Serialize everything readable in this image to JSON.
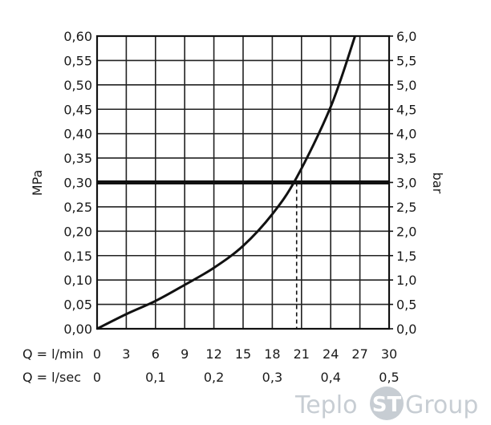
{
  "chart_data": {
    "type": "line",
    "ylabel_left": "MPa",
    "ylabel_right": "bar",
    "ylim": [
      0,
      0.6
    ],
    "y_ticks_left": [
      "0,00",
      "0,05",
      "0,10",
      "0,15",
      "0,20",
      "0,25",
      "0,30",
      "0,35",
      "0,40",
      "0,45",
      "0,50",
      "0,55",
      "0,60"
    ],
    "y_ticks_right": [
      "0,0",
      "0,5",
      "1,0",
      "1,5",
      "2,0",
      "2,5",
      "3,0",
      "3,5",
      "4,0",
      "4,5",
      "5,0",
      "5,5",
      "6,0"
    ],
    "xlim": [
      0,
      30
    ],
    "x_label_lmin": "Q = l/min",
    "x_ticks_lmin": [
      "0",
      "3",
      "6",
      "9",
      "12",
      "15",
      "18",
      "21",
      "24",
      "27",
      "30"
    ],
    "x_label_lsec": "Q = l/sec",
    "x_ticks_lsec": [
      {
        "value": 0,
        "label": "0"
      },
      {
        "value": 6,
        "label": "0,1"
      },
      {
        "value": 12,
        "label": "0,2"
      },
      {
        "value": 18,
        "label": "0,3"
      },
      {
        "value": 24,
        "label": "0,4"
      },
      {
        "value": 30,
        "label": "0,5"
      }
    ],
    "grid": true,
    "series": [
      {
        "x": [
          0,
          3,
          6,
          9,
          12,
          15,
          18,
          20.5,
          24,
          26.5
        ],
        "y": [
          0.0,
          0.03,
          0.057,
          0.09,
          0.125,
          0.17,
          0.235,
          0.31,
          0.455,
          0.6
        ]
      }
    ],
    "reference_line": {
      "y": 0.3
    },
    "marker": {
      "x": 20.5,
      "y": 0.3
    }
  },
  "watermark": {
    "part1": "Teplo",
    "badge": "ST",
    "part2": "Group",
    "color": "#c7cdd3"
  }
}
